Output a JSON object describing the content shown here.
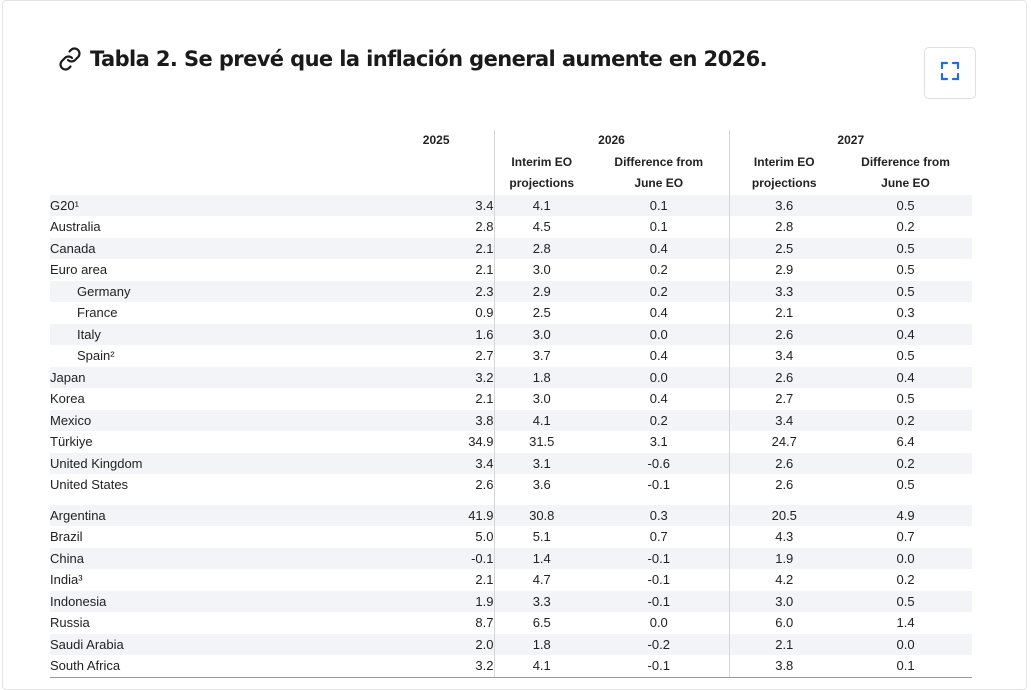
{
  "title": "Tabla 2. Se prevé que la inflación general aumente en 2026.",
  "icons": {
    "link": "link-icon",
    "expand": "expand-icon"
  },
  "table": {
    "years": [
      "2025",
      "2026",
      "2027"
    ],
    "subheaders": {
      "interim": [
        "Interim EO",
        "projections"
      ],
      "diff": [
        "Difference from",
        "June EO"
      ]
    },
    "group1": [
      {
        "name": "G20¹",
        "v": [
          "3.4",
          "4.1",
          "0.1",
          "3.6",
          "0.5"
        ]
      },
      {
        "name": "Australia",
        "v": [
          "2.8",
          "4.5",
          "0.1",
          "2.8",
          "0.2"
        ]
      },
      {
        "name": "Canada",
        "v": [
          "2.1",
          "2.8",
          "0.4",
          "2.5",
          "0.5"
        ]
      },
      {
        "name": "Euro area",
        "v": [
          "2.1",
          "3.0",
          "0.2",
          "2.9",
          "0.5"
        ]
      },
      {
        "name": "Germany",
        "indent": true,
        "v": [
          "2.3",
          "2.9",
          "0.2",
          "3.3",
          "0.5"
        ]
      },
      {
        "name": "France",
        "indent": true,
        "v": [
          "0.9",
          "2.5",
          "0.4",
          "2.1",
          "0.3"
        ]
      },
      {
        "name": "Italy",
        "indent": true,
        "v": [
          "1.6",
          "3.0",
          "0.0",
          "2.6",
          "0.4"
        ]
      },
      {
        "name": "Spain²",
        "indent": true,
        "v": [
          "2.7",
          "3.7",
          "0.4",
          "3.4",
          "0.5"
        ]
      },
      {
        "name": "Japan",
        "v": [
          "3.2",
          "1.8",
          "0.0",
          "2.6",
          "0.4"
        ]
      },
      {
        "name": "Korea",
        "v": [
          "2.1",
          "3.0",
          "0.4",
          "2.7",
          "0.5"
        ]
      },
      {
        "name": "Mexico",
        "v": [
          "3.8",
          "4.1",
          "0.2",
          "3.4",
          "0.2"
        ]
      },
      {
        "name": "Türkiye",
        "v": [
          "34.9",
          "31.5",
          "3.1",
          "24.7",
          "6.4"
        ]
      },
      {
        "name": "United Kingdom",
        "v": [
          "3.4",
          "3.1",
          "-0.6",
          "2.6",
          "0.2"
        ]
      },
      {
        "name": "United States",
        "v": [
          "2.6",
          "3.6",
          "-0.1",
          "2.6",
          "0.5"
        ]
      }
    ],
    "group2": [
      {
        "name": "Argentina",
        "v": [
          "41.9",
          "30.8",
          "0.3",
          "20.5",
          "4.9"
        ]
      },
      {
        "name": "Brazil",
        "v": [
          "5.0",
          "5.1",
          "0.7",
          "4.3",
          "0.7"
        ]
      },
      {
        "name": "China",
        "v": [
          "-0.1",
          "1.4",
          "-0.1",
          "1.9",
          "0.0"
        ]
      },
      {
        "name": "India³",
        "v": [
          "2.1",
          "4.7",
          "-0.1",
          "4.2",
          "0.2"
        ]
      },
      {
        "name": "Indonesia",
        "v": [
          "1.9",
          "3.3",
          "-0.1",
          "3.0",
          "0.5"
        ]
      },
      {
        "name": "Russia",
        "v": [
          "8.7",
          "6.5",
          "0.0",
          "6.0",
          "1.4"
        ]
      },
      {
        "name": "Saudi Arabia",
        "v": [
          "2.0",
          "1.8",
          "-0.2",
          "2.1",
          "0.0"
        ]
      },
      {
        "name": "South Africa",
        "v": [
          "3.2",
          "4.1",
          "-0.1",
          "3.8",
          "0.1"
        ]
      }
    ]
  }
}
